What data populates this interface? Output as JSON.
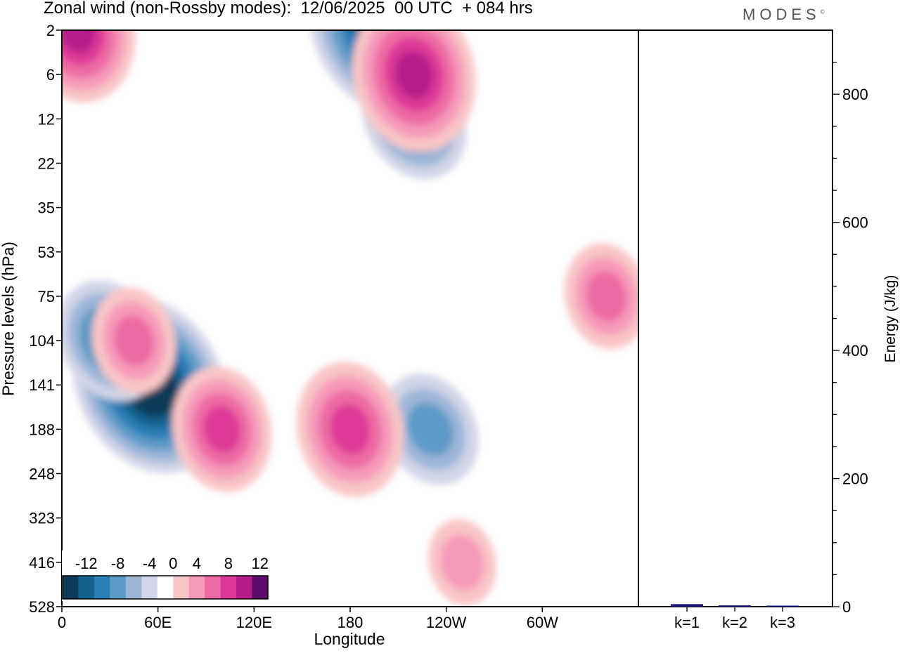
{
  "title": "Zonal wind (non-Rossby modes):  12/06/2025  00 UTC  + 084 hrs",
  "logo": "MODES",
  "logo_mark": "©",
  "chart_data": [
    {
      "type": "heatmap",
      "variable": "Zonal wind (non-Rossby modes)",
      "xlabel": "Longitude",
      "ylabel": "Pressure levels (hPa)",
      "x_ticks": [
        "0",
        "60E",
        "120E",
        "180",
        "120W",
        "60W"
      ],
      "x_tick_values": [
        0,
        60,
        120,
        180,
        240,
        300
      ],
      "xlim": [
        0,
        360
      ],
      "y_ticks": [
        "2",
        "6",
        "12",
        "22",
        "35",
        "53",
        "75",
        "104",
        "141",
        "188",
        "248",
        "323",
        "416",
        "528"
      ],
      "colorbar": {
        "labels": [
          "-12",
          "-8",
          "-4",
          "0",
          "4",
          "8",
          "12"
        ],
        "levels": [
          -14,
          -12,
          -10,
          -8,
          -6,
          -4,
          -2,
          2,
          4,
          6,
          8,
          10,
          12,
          14
        ],
        "colors": [
          "#0b3a57",
          "#14618e",
          "#2a7fb8",
          "#5d9ac6",
          "#9db6d8",
          "#d2d6e8",
          "#ffffff",
          "#f9c6c6",
          "#f59ab8",
          "#ee6aa4",
          "#dd3a97",
          "#b61b8a",
          "#5b0c6a"
        ]
      },
      "features": [
        {
          "lon": 55,
          "level": "141",
          "value": -14
        },
        {
          "lon": 30,
          "level": "104",
          "value": -8
        },
        {
          "lon": 200,
          "level": "2",
          "value": -13
        },
        {
          "lon": 230,
          "level": "188",
          "value": -7
        },
        {
          "lon": 220,
          "level": "12",
          "value": -8
        },
        {
          "lon": 180,
          "level": "188",
          "value": 9
        },
        {
          "lon": 100,
          "level": "188",
          "value": 8
        },
        {
          "lon": 45,
          "level": "104",
          "value": 6
        },
        {
          "lon": 220,
          "level": "6",
          "value": 11
        },
        {
          "lon": 10,
          "level": "2",
          "value": 10
        },
        {
          "lon": 340,
          "level": "75",
          "value": 6
        },
        {
          "lon": 250,
          "level": "416",
          "value": 4
        }
      ]
    },
    {
      "type": "bar",
      "ylabel": "Energy (J/kg)",
      "categories": [
        "k=1",
        "k=2",
        "k=3"
      ],
      "values": [
        4,
        2,
        1
      ],
      "ylim": [
        0,
        900
      ],
      "y_ticks": [
        "0",
        "200",
        "400",
        "600",
        "800"
      ],
      "bar_color": "#1a1a80"
    }
  ]
}
